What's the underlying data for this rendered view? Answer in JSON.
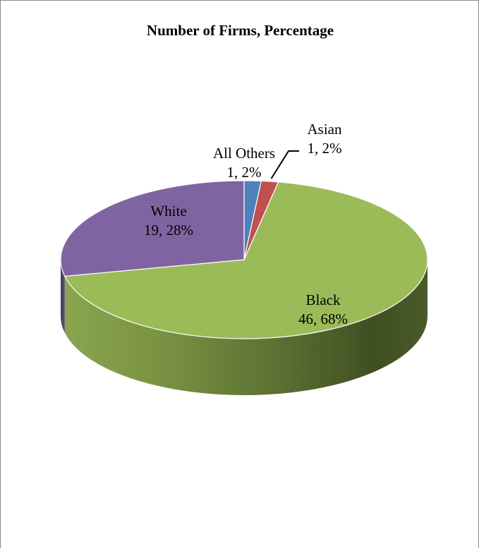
{
  "chart_data": {
    "type": "pie",
    "title": "Number of Firms, Percentage",
    "slices": [
      {
        "name": "All Others",
        "value": 1,
        "percent": 2,
        "label": "All Others\n1, 2%",
        "color": "#4f81bd"
      },
      {
        "name": "Asian",
        "value": 1,
        "percent": 2,
        "label": "Asian\n1, 2%",
        "color": "#c0504d"
      },
      {
        "name": "Black",
        "value": 46,
        "percent": 68,
        "label": "Black\n46, 68%",
        "color": "#9bbb59"
      },
      {
        "name": "White",
        "value": 19,
        "percent": 28,
        "label": "White\n19, 28%",
        "color": "#8064a2"
      }
    ],
    "start_angle_deg": 0,
    "direction": "clockwise",
    "style": "3d",
    "legend": "none",
    "data_labels": "category, value, percentage"
  }
}
